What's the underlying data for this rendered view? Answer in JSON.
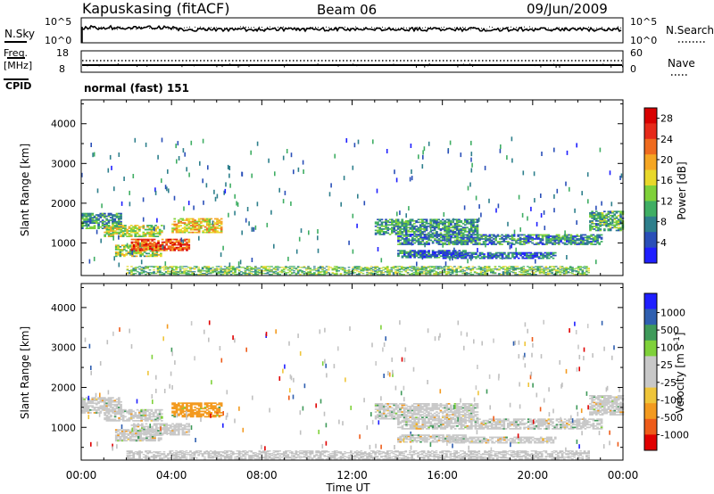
{
  "header": {
    "station": "Kapuskasing (fitACF)",
    "beam": "Beam 06",
    "date": "09/Jun/2009"
  },
  "noise_panel": {
    "left_label": "N.Sky",
    "right_label": "N.Search",
    "left_ticks": [
      "10^5",
      "10^0"
    ],
    "right_ticks": [
      "10^5",
      "10^0"
    ]
  },
  "freq_panel": {
    "label_line1": "Freq.",
    "label_line2": "[MHz]",
    "cpid_label": "CPID",
    "nave_label": "Nave",
    "left_ticks": [
      "18",
      "8"
    ],
    "right_ticks": [
      "60",
      "0"
    ]
  },
  "mode_text": "normal (fast) 151",
  "x_axis": {
    "label": "Time UT",
    "ticks": [
      "00:00",
      "04:00",
      "08:00",
      "12:00",
      "16:00",
      "20:00",
      "00:00"
    ],
    "hours": [
      0,
      4,
      8,
      12,
      16,
      20,
      24
    ]
  },
  "colors": {
    "power_scale": [
      "#1f1fff",
      "#2a4fb8",
      "#2e7f8c",
      "#3fae63",
      "#7fd13a",
      "#e8d82a",
      "#f5a623",
      "#ef6b1f",
      "#e62a1a",
      "#d80000"
    ],
    "velocity_scale": [
      "#e00000",
      "#ee5c1a",
      "#f39a1f",
      "#efc53a",
      "#c8c8c8",
      "#c8c8c8",
      "#7fd13a",
      "#3f9a5a",
      "#2f5fb0",
      "#1f1fff"
    ],
    "ground_gray": "#c0c0c0"
  },
  "chart_data": [
    {
      "type": "heatmap",
      "title": "",
      "xlabel": "Time UT",
      "ylabel": "Slant Range [km]",
      "xlim": [
        0,
        24
      ],
      "ylim": [
        180,
        4600
      ],
      "yticks": [
        1000,
        2000,
        3000,
        4000
      ],
      "colorbar": {
        "label": "Power [dB]",
        "ticks": [
          "4",
          "8",
          "12",
          "16",
          "20",
          "24",
          "28"
        ],
        "range": [
          0,
          30
        ]
      },
      "regions": [
        {
          "t0": 0.0,
          "t1": 1.8,
          "r0": 1350,
          "r1": 1750,
          "level": 9
        },
        {
          "t0": 1.0,
          "t1": 3.6,
          "r0": 1150,
          "r1": 1450,
          "level": 15
        },
        {
          "t0": 1.5,
          "t1": 3.5,
          "r0": 650,
          "r1": 950,
          "level": 14
        },
        {
          "t0": 2.2,
          "t1": 4.8,
          "r0": 800,
          "r1": 1100,
          "level": 24
        },
        {
          "t0": 4.0,
          "t1": 6.2,
          "r0": 1250,
          "r1": 1600,
          "level": 18
        },
        {
          "t0": 13.0,
          "t1": 17.5,
          "r0": 1200,
          "r1": 1600,
          "level": 9
        },
        {
          "t0": 14.0,
          "t1": 23.0,
          "r0": 950,
          "r1": 1200,
          "level": 8
        },
        {
          "t0": 14.0,
          "t1": 17.0,
          "r0": 620,
          "r1": 800,
          "level": 7
        },
        {
          "t0": 16.0,
          "t1": 21.0,
          "r0": 600,
          "r1": 750,
          "level": 6
        },
        {
          "t0": 22.5,
          "t1": 24.0,
          "r0": 1300,
          "r1": 1800,
          "level": 10
        },
        {
          "t0": 2.0,
          "t1": 22.5,
          "r0": 200,
          "r1": 420,
          "level": 12
        }
      ]
    },
    {
      "type": "heatmap",
      "title": "",
      "xlabel": "Time UT",
      "ylabel": "Slant Range [km]",
      "xlim": [
        0,
        24
      ],
      "ylim": [
        180,
        4600
      ],
      "yticks": [
        1000,
        2000,
        3000,
        4000
      ],
      "colorbar": {
        "label": "Velocity [m s-1]",
        "ticks": [
          "1000",
          "500",
          "100",
          "25",
          "-25",
          "-100",
          "-500",
          "-1000"
        ],
        "range": [
          -1000,
          1000
        ]
      },
      "regions": [
        {
          "t0": 0.0,
          "t1": 1.8,
          "r0": 1350,
          "r1": 1750,
          "velocity": 0
        },
        {
          "t0": 1.0,
          "t1": 3.6,
          "r0": 1150,
          "r1": 1450,
          "velocity": 0
        },
        {
          "t0": 1.5,
          "t1": 3.5,
          "r0": 650,
          "r1": 950,
          "velocity": 0
        },
        {
          "t0": 2.2,
          "t1": 4.8,
          "r0": 800,
          "r1": 1100,
          "velocity": 0
        },
        {
          "t0": 4.0,
          "t1": 6.2,
          "r0": 1250,
          "r1": 1600,
          "velocity": -150
        },
        {
          "t0": 13.0,
          "t1": 17.5,
          "r0": 1200,
          "r1": 1600,
          "velocity": 0
        },
        {
          "t0": 14.0,
          "t1": 23.0,
          "r0": 950,
          "r1": 1200,
          "velocity": 0
        },
        {
          "t0": 14.0,
          "t1": 17.0,
          "r0": 620,
          "r1": 800,
          "velocity": 0
        },
        {
          "t0": 16.0,
          "t1": 21.0,
          "r0": 600,
          "r1": 750,
          "velocity": 0
        },
        {
          "t0": 22.5,
          "t1": 24.0,
          "r0": 1300,
          "r1": 1800,
          "velocity": 0
        },
        {
          "t0": 2.0,
          "t1": 22.5,
          "r0": 200,
          "r1": 420,
          "velocity": 0
        }
      ]
    }
  ]
}
